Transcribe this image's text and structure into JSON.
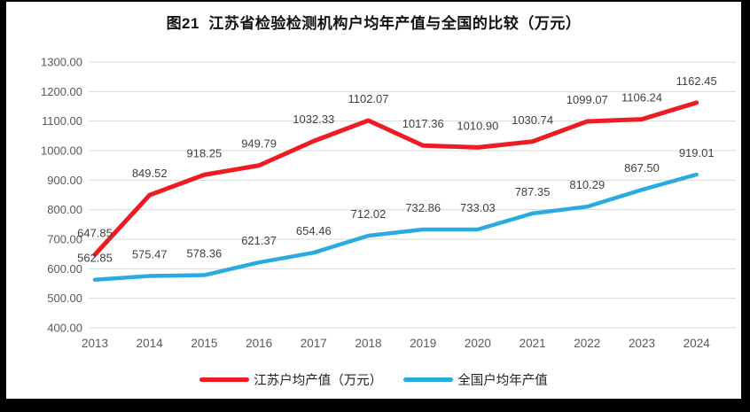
{
  "chart_data": {
    "type": "line",
    "title": "图21  江苏省检验检测机构户均年产值与全国的比较（万元）",
    "categories": [
      "2013",
      "2014",
      "2015",
      "2016",
      "2017",
      "2018",
      "2019",
      "2020",
      "2021",
      "2022",
      "2023",
      "2024"
    ],
    "series": [
      {
        "name": "江苏户均产值（万元）",
        "color": "#ED1C24",
        "values": [
          647.85,
          849.52,
          918.25,
          949.79,
          1032.33,
          1102.07,
          1017.36,
          1010.9,
          1030.74,
          1099.07,
          1106.24,
          1162.45
        ]
      },
      {
        "name": "全国户均年产值",
        "color": "#29ABE2",
        "values": [
          562.85,
          575.47,
          578.36,
          621.37,
          654.46,
          712.02,
          732.86,
          733.03,
          787.35,
          810.29,
          867.5,
          919.01
        ]
      }
    ],
    "ylim": [
      400,
      1300
    ],
    "ytick_step": 100,
    "value_decimals": 2,
    "grid": true,
    "data_labels": true,
    "legend_position": "bottom",
    "colors": {
      "gridline": "#D9D9D9",
      "tick_label": "#595959",
      "data_label": "#404040",
      "background": "#FFFFFF",
      "frame": "#000000"
    }
  }
}
